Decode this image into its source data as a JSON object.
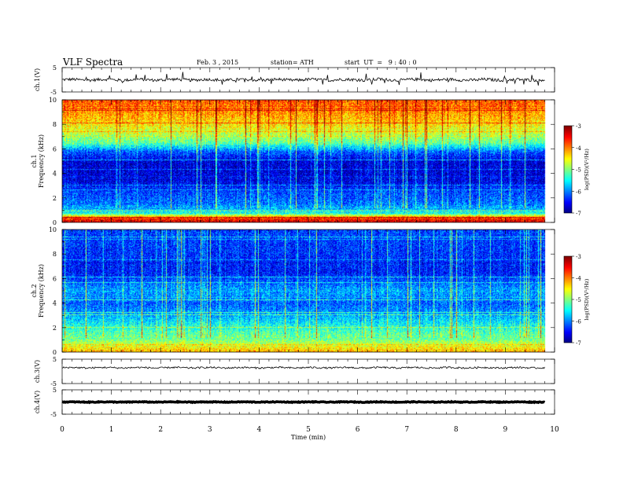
{
  "header": {
    "title": "VLF Spectra",
    "date": "Feb. 3 , 2015",
    "station": "station= ATH",
    "start": "start  UT  =   9 : 40 : 0"
  },
  "chart_data": [
    {
      "type": "line",
      "panel": "ch1-waveform",
      "ylabel": "ch.1(V)",
      "ylim": [
        -5,
        5
      ],
      "y_ticks": [
        "5",
        "-5"
      ],
      "x_range_min": [
        0,
        9.8
      ],
      "baseline_v": 0.0,
      "noise_v": 0.6,
      "spikes_up_to_v": 3.5
    },
    {
      "type": "heatmap",
      "panel": "ch1-spectrogram",
      "ylabel": "ch.1\nFrequency  (kHz)",
      "ylim": [
        0,
        10
      ],
      "y_ticks": [
        "0",
        "2",
        "4",
        "6",
        "8",
        "10"
      ],
      "colorbar": {
        "label": "log(PSD)(V²/Hz)",
        "range": [
          -7,
          -3
        ],
        "ticks": [
          "-3",
          "-4",
          "-5",
          "-6",
          "-7"
        ]
      },
      "band_profile_logpsd": [
        {
          "f_khz": 0.0,
          "v": -3.3
        },
        {
          "f_khz": 0.4,
          "v": -3.8
        },
        {
          "f_khz": 0.8,
          "v": -5.6
        },
        {
          "f_khz": 1.5,
          "v": -6.2
        },
        {
          "f_khz": 2.5,
          "v": -6.4
        },
        {
          "f_khz": 3.5,
          "v": -6.8
        },
        {
          "f_khz": 5.0,
          "v": -6.8
        },
        {
          "f_khz": 5.8,
          "v": -6.3
        },
        {
          "f_khz": 6.5,
          "v": -5.3
        },
        {
          "f_khz": 7.5,
          "v": -4.8
        },
        {
          "f_khz": 8.5,
          "v": -4.4
        },
        {
          "f_khz": 10.0,
          "v": -4.0
        }
      ]
    },
    {
      "type": "heatmap",
      "panel": "ch2-spectrogram",
      "ylabel": "ch.2\nFrequency  (kHz)",
      "ylim": [
        0,
        10
      ],
      "y_ticks": [
        "0",
        "2",
        "4",
        "6",
        "8",
        "10"
      ],
      "colorbar": {
        "label": "log(PSD)(V²/Hz)",
        "range": [
          -7,
          -3
        ],
        "ticks": [
          "-3",
          "-4",
          "-5",
          "-6",
          "-7"
        ]
      },
      "band_profile_logpsd": [
        {
          "f_khz": 0.0,
          "v": -4.2
        },
        {
          "f_khz": 0.5,
          "v": -4.6
        },
        {
          "f_khz": 1.2,
          "v": -5.2
        },
        {
          "f_khz": 2.0,
          "v": -5.5
        },
        {
          "f_khz": 3.0,
          "v": -6.0
        },
        {
          "f_khz": 4.0,
          "v": -6.3
        },
        {
          "f_khz": 5.0,
          "v": -6.0
        },
        {
          "f_khz": 6.5,
          "v": -6.6
        },
        {
          "f_khz": 8.0,
          "v": -6.5
        },
        {
          "f_khz": 10.0,
          "v": -6.4
        }
      ]
    },
    {
      "type": "line",
      "panel": "ch3-waveform",
      "ylabel": "ch.3(V)",
      "ylim": [
        -5,
        5
      ],
      "y_ticks": [
        "5",
        "-5"
      ],
      "x_range_min": [
        0,
        9.8
      ],
      "baseline_v": 1.5,
      "noise_v": 0.35,
      "spikes_up_to_v": 0
    },
    {
      "type": "line",
      "panel": "ch4-waveform",
      "ylabel": "ch.4(V)",
      "ylim": [
        -5,
        5
      ],
      "y_ticks": [
        "5",
        "-5"
      ],
      "x_range_min": [
        0,
        9.8
      ],
      "baseline_v": 0.0,
      "noise_v": 0.15,
      "spikes_up_to_v": 0
    }
  ],
  "x_axis": {
    "label": "Time  (min)",
    "range": [
      0,
      10
    ],
    "ticks": [
      "0",
      "1",
      "2",
      "3",
      "4",
      "5",
      "6",
      "7",
      "8",
      "9",
      "10"
    ]
  }
}
